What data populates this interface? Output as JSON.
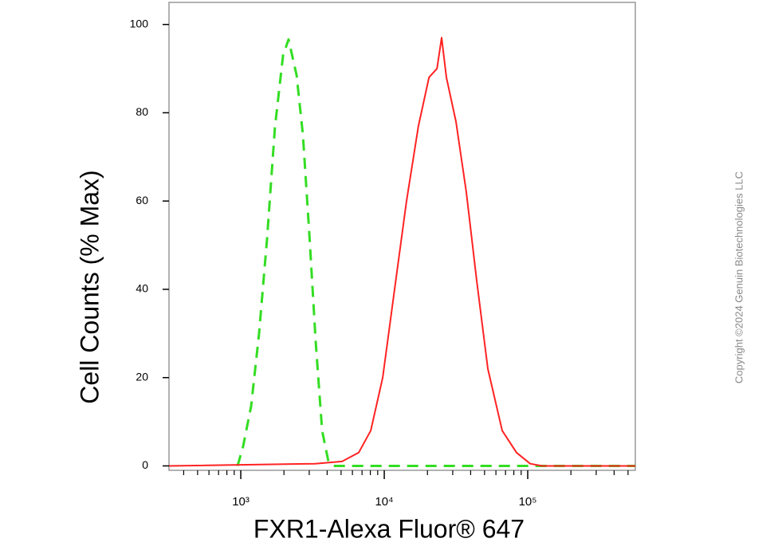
{
  "chart_data": {
    "type": "line",
    "xlabel": "FXR1-Alexa Fluor® 647",
    "ylabel": "Cell Counts (% Max)",
    "copyright": "Copyright ©2024 Genuin Biotechnologies LLC",
    "xscale": "log",
    "xlim": [
      316,
      562000
    ],
    "ylim": [
      -1,
      105
    ],
    "xticks": [
      {
        "value": 1000,
        "label": "10³"
      },
      {
        "value": 10000,
        "label": "10⁴"
      },
      {
        "value": 100000,
        "label": "10⁵"
      }
    ],
    "xminorticks": [
      400,
      500,
      600,
      700,
      800,
      900,
      2000,
      3000,
      4000,
      5000,
      6000,
      7000,
      8000,
      9000,
      20000,
      30000,
      40000,
      50000,
      60000,
      70000,
      80000,
      90000,
      200000,
      300000,
      400000,
      500000
    ],
    "yticks": [
      0,
      20,
      40,
      60,
      80,
      100
    ],
    "grid": false,
    "series": [
      {
        "color": "#33dd22",
        "style": "dashed",
        "x": [
          950,
          1040,
          1180,
          1340,
          1525,
          1730,
          1970,
          2154,
          2450,
          2710,
          3000,
          3330,
          3690,
          4080,
          4520,
          562000
        ],
        "values": [
          0,
          4.5,
          13.5,
          29.8,
          51.4,
          76.7,
          93,
          96.6,
          88.5,
          75,
          53,
          28,
          8,
          1,
          0,
          0
        ]
      },
      {
        "color": "#ff2222",
        "style": "solid",
        "x": [
          316,
          3290,
          5080,
          6640,
          8050,
          9750,
          11800,
          14300,
          17300,
          20500,
          23300,
          25100,
          27100,
          31600,
          37300,
          44100,
          52700,
          66400,
          83600,
          104000,
          126000,
          562000
        ],
        "values": [
          0,
          0.5,
          1,
          3,
          8,
          20,
          40,
          60,
          77,
          88,
          90,
          97,
          88,
          78,
          62,
          42,
          22,
          8,
          3,
          0.5,
          0,
          0
        ]
      }
    ]
  }
}
